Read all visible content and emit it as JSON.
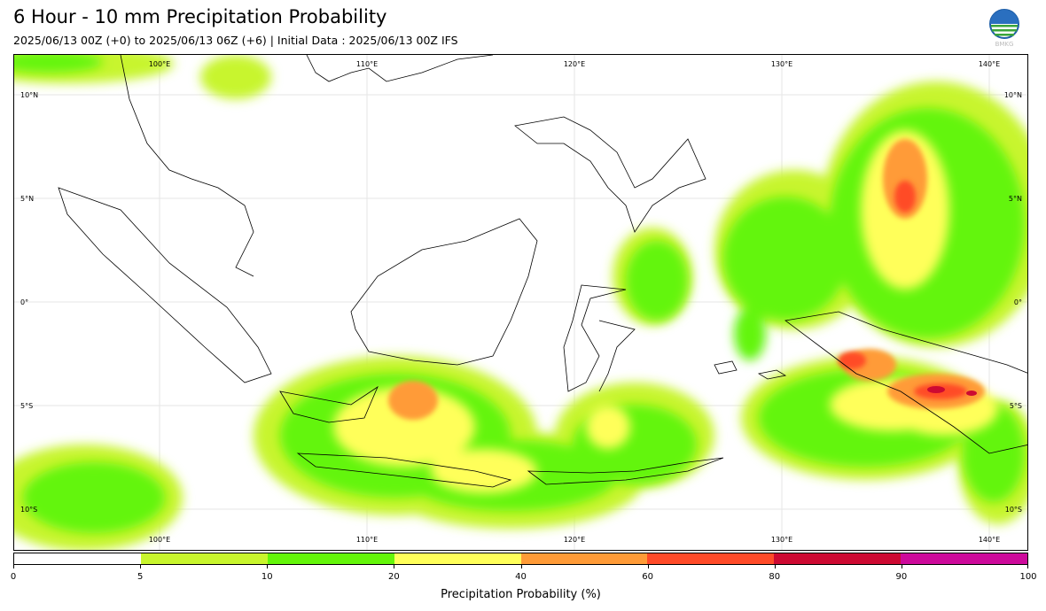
{
  "title": "6 Hour - 10 mm Precipitation Probability",
  "subtitle": "2025/06/13 00Z (+0) to 2025/06/13 06Z (+6) | Initial Data : 2025/06/13 00Z IFS",
  "logo": {
    "icon": "bmkg-logo-icon",
    "text": "BMKG"
  },
  "map": {
    "lon_range": [
      93,
      142
    ],
    "lat_range": [
      -12,
      12
    ],
    "top_lon_labels": [
      "100°E",
      "110°E",
      "120°E",
      "130°E",
      "140°E"
    ],
    "bottom_lon_labels": [
      "100°E",
      "110°E",
      "120°E",
      "130°E",
      "140°E"
    ],
    "lon_values": [
      100,
      110,
      120,
      130,
      140
    ],
    "left_lat_labels": [
      "10°N",
      "5°N",
      "0°",
      "5°S",
      "10°S"
    ],
    "right_lat_labels": [
      "10°N",
      "5°N",
      "0°",
      "5°S",
      "10°S"
    ],
    "lat_values": [
      10,
      5,
      0,
      -5,
      -10
    ],
    "grid": true
  },
  "colorbar": {
    "label": "Precipitation Probability (%)",
    "bounds": [
      "0",
      "5",
      "10",
      "20",
      "40",
      "60",
      "80",
      "90",
      "100"
    ],
    "colors": [
      "#ffffff",
      "#c8f52d",
      "#64f50a",
      "#ffff5a",
      "#ff9b37",
      "#ff4b28",
      "#cd0a32",
      "#cd0a9b"
    ]
  }
}
